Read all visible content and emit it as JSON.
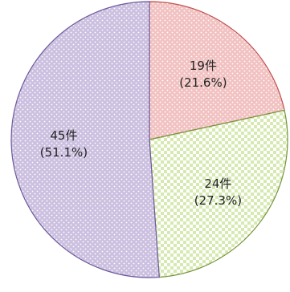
{
  "chart_data": {
    "type": "pie",
    "slices": [
      {
        "value": 19,
        "label": "19件",
        "percent_label": "(21.6%)",
        "fill": "#f2c2c2",
        "stroke": "#c0504d",
        "pattern": "dots"
      },
      {
        "value": 24,
        "label": "24件",
        "percent_label": "(27.3%)",
        "fill": "#e3f0c8",
        "stroke": "#77933c",
        "pattern": "checker"
      },
      {
        "value": 45,
        "label": "45件",
        "percent_label": "(51.1%)",
        "fill": "#ccc0e0",
        "stroke": "#6d5a9b",
        "pattern": "dots"
      }
    ],
    "start_angle_deg": 0,
    "direction": "clockwise",
    "legend": "none",
    "title": ""
  }
}
